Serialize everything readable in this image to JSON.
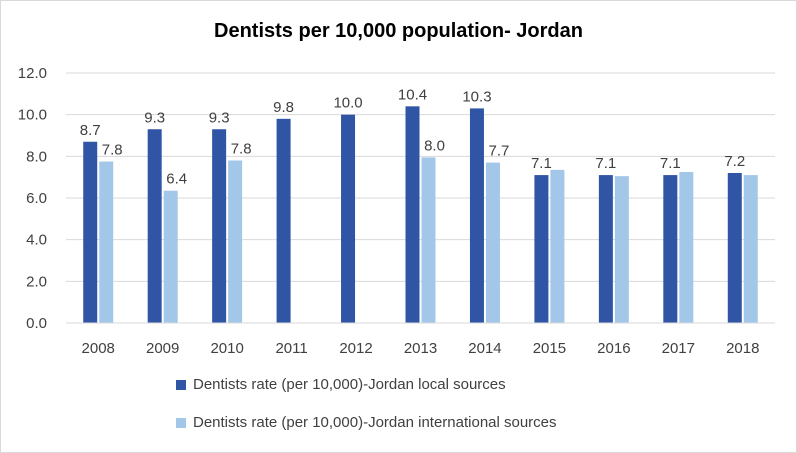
{
  "chart_data": {
    "type": "bar",
    "title": "Dentists per 10,000 population- Jordan",
    "xlabel": "",
    "ylabel": "",
    "ylim": [
      0,
      12
    ],
    "yticks": [
      "0.0",
      "2.0",
      "4.0",
      "6.0",
      "8.0",
      "10.0",
      "12.0"
    ],
    "grid": true,
    "legend_position": "bottom",
    "categories": [
      "2008",
      "2009",
      "2010",
      "2011",
      "2012",
      "2013",
      "2014",
      "2015",
      "2016",
      "2017",
      "2018"
    ],
    "series": [
      {
        "name": "Dentists rate (per 10,000)-Jordan local sources",
        "color": "#2f55a4",
        "values": [
          8.7,
          9.3,
          9.3,
          9.8,
          10.0,
          10.4,
          10.3,
          7.1,
          7.1,
          7.1,
          7.2
        ],
        "labels": [
          "8.7",
          "9.3",
          "9.3",
          "9.8",
          "10.0",
          "10.4",
          "10.3",
          "7.1",
          "7.1",
          "7.1",
          "7.2"
        ]
      },
      {
        "name": "Dentists rate (per 10,000)-Jordan international sources",
        "color": "#a3c7e9",
        "values": [
          7.75,
          6.35,
          7.8,
          null,
          null,
          7.95,
          7.7,
          7.35,
          7.05,
          7.25,
          7.1
        ],
        "labels": [
          "7.8",
          "6.4",
          "7.8",
          null,
          null,
          "8.0",
          "7.7",
          null,
          null,
          null,
          null
        ]
      }
    ]
  }
}
